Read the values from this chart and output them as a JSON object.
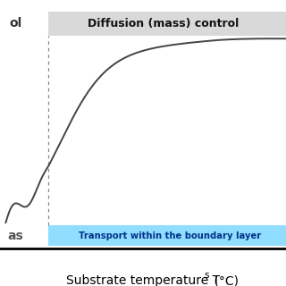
{
  "background_color": "#ffffff",
  "curve_color": "#444444",
  "dashed_line_color": "#888888",
  "diffusion_band_color": "#bbbbbb",
  "transport_band_color": "#55ccff",
  "diffusion_label": "Diffusion (mass) control",
  "transport_label": "Transport within the boundary layer",
  "left_label_top": "ol",
  "left_label_bottom": "as",
  "diffusion_band_alpha": 0.55,
  "transport_band_alpha": 0.65,
  "curve_linewidth": 1.4,
  "figsize": [
    3.2,
    3.2
  ],
  "dpi": 100
}
